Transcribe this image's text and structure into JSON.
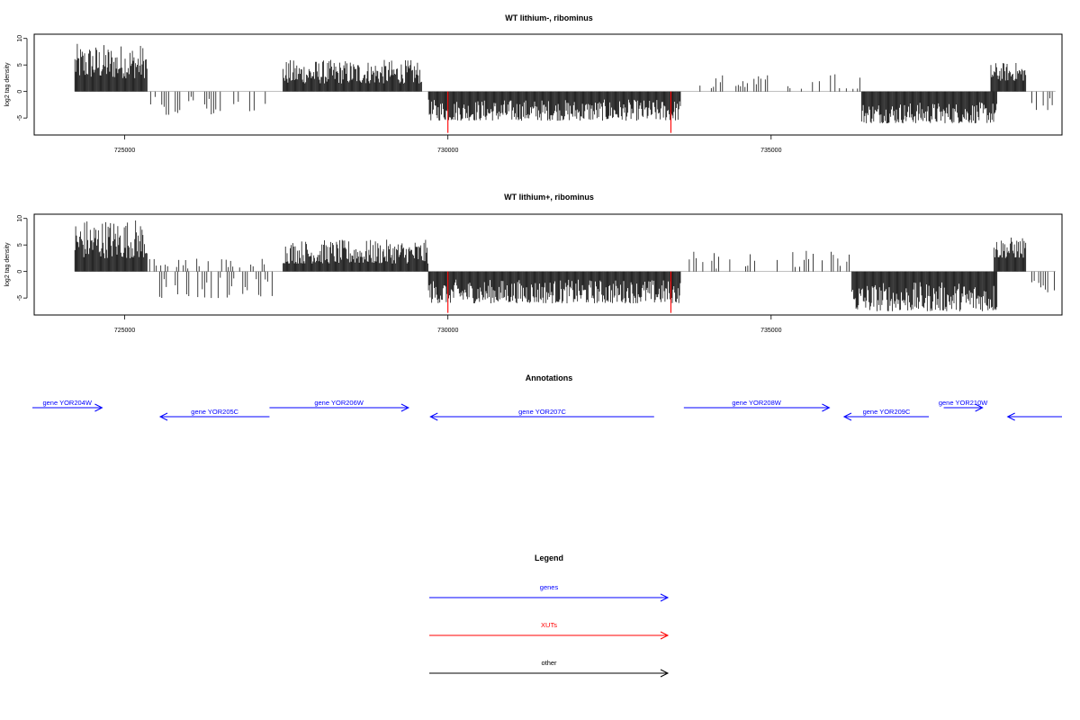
{
  "colors": {
    "genes": "#0000ff",
    "xuts": "#ff0000",
    "other": "#000000",
    "bars": "#000000",
    "baseline": "#9a9a9a",
    "frame": "#000000"
  },
  "chart_data": [
    {
      "type": "bar",
      "title": "WT lithium-, ribominus",
      "ylabel": "log2 tag density",
      "xlim": [
        723600,
        739500
      ],
      "ylim": [
        -8.2,
        10.8
      ],
      "x_ticks": [
        725000,
        730000,
        735000
      ],
      "x_tick_labels": [
        "725000",
        "730000",
        "735000"
      ],
      "y_ticks": [
        -5,
        0,
        5,
        10
      ],
      "y_tick_labels": [
        "-5",
        "0",
        "5",
        "10"
      ],
      "segments": [
        {
          "start": 724230,
          "end": 725350,
          "strand": "+",
          "min": 2.5,
          "max": 9.0
        },
        {
          "start": 725400,
          "end": 727200,
          "strand": "-",
          "min": -4.5,
          "max": -1.0,
          "sparse": true
        },
        {
          "start": 727450,
          "end": 729600,
          "strand": "+",
          "min": 1.5,
          "max": 6.0
        },
        {
          "start": 729700,
          "end": 733600,
          "strand": "-",
          "min": -5.5,
          "max": -1.5
        },
        {
          "start": 733900,
          "end": 736400,
          "strand": "+",
          "min": 0.5,
          "max": 3.5,
          "sparse": true
        },
        {
          "start": 736400,
          "end": 738500,
          "strand": "-",
          "min": -6.0,
          "max": -2.0
        },
        {
          "start": 738400,
          "end": 738950,
          "strand": "+",
          "min": 2.0,
          "max": 5.5
        },
        {
          "start": 739000,
          "end": 739400,
          "strand": "-",
          "min": -3.5,
          "max": -1.0,
          "sparse": true
        }
      ],
      "xut_spikes": [
        {
          "x": 730000,
          "value": -7.8
        },
        {
          "x": 733450,
          "value": -7.8
        }
      ]
    },
    {
      "type": "bar",
      "title": "WT lithium+, ribominus",
      "ylabel": "log2 tag density",
      "xlim": [
        723600,
        739500
      ],
      "ylim": [
        -8.2,
        10.8
      ],
      "x_ticks": [
        725000,
        730000,
        735000
      ],
      "x_tick_labels": [
        "725000",
        "730000",
        "735000"
      ],
      "y_ticks": [
        -5,
        0,
        5,
        10
      ],
      "y_tick_labels": [
        "-5",
        "0",
        "5",
        "10"
      ],
      "segments": [
        {
          "start": 724230,
          "end": 725350,
          "strand": "+",
          "min": 2.5,
          "max": 10.0
        },
        {
          "start": 725350,
          "end": 727250,
          "strand": "+",
          "min": 0.5,
          "max": 2.5,
          "sparse": true
        },
        {
          "start": 725400,
          "end": 727300,
          "strand": "-",
          "min": -5.0,
          "max": -1.0,
          "sparse": true
        },
        {
          "start": 727450,
          "end": 729700,
          "strand": "+",
          "min": 1.5,
          "max": 6.0
        },
        {
          "start": 729700,
          "end": 733600,
          "strand": "-",
          "min": -6.0,
          "max": -1.5
        },
        {
          "start": 733700,
          "end": 736300,
          "strand": "+",
          "min": 0.5,
          "max": 4.0,
          "sparse": true
        },
        {
          "start": 736250,
          "end": 738500,
          "strand": "-",
          "min": -7.5,
          "max": -2.0
        },
        {
          "start": 738450,
          "end": 738950,
          "strand": "+",
          "min": 2.5,
          "max": 6.5
        },
        {
          "start": 739000,
          "end": 739400,
          "strand": "-",
          "min": -4.5,
          "max": -1.0,
          "sparse": true
        }
      ],
      "xut_spikes": [
        {
          "x": 730000,
          "value": -7.8
        },
        {
          "x": 733450,
          "value": -7.8
        }
      ]
    }
  ],
  "annotations": {
    "title": "Annotations",
    "features": [
      {
        "label": "gene YOR204W",
        "type": "gene",
        "start": 723550,
        "end": 724650,
        "strand": "+",
        "row": 0
      },
      {
        "label": "gene YOR205C",
        "type": "gene",
        "start": 725550,
        "end": 727240,
        "strand": "-",
        "row": 1
      },
      {
        "label": "gene YOR206W",
        "type": "gene",
        "start": 727240,
        "end": 729390,
        "strand": "+",
        "row": 0
      },
      {
        "label": "gene YOR207C",
        "type": "gene",
        "start": 729730,
        "end": 733190,
        "strand": "-",
        "row": 1
      },
      {
        "label": "gene YOR208W",
        "type": "gene",
        "start": 733650,
        "end": 735900,
        "strand": "+",
        "row": 0
      },
      {
        "label": "gene YOR209C",
        "type": "gene",
        "start": 736130,
        "end": 737440,
        "strand": "-",
        "row": 1
      },
      {
        "label": "gene YOR210W",
        "type": "gene",
        "start": 737670,
        "end": 738270,
        "strand": "+",
        "row": 0
      },
      {
        "label": "",
        "type": "gene",
        "start": 738660,
        "end": 739600,
        "strand": "-",
        "row": 1
      }
    ]
  },
  "legend": {
    "title": "Legend",
    "items": [
      {
        "label": "genes",
        "type": "gene"
      },
      {
        "label": "XUTs",
        "type": "xut"
      },
      {
        "label": "other",
        "type": "other"
      }
    ]
  }
}
